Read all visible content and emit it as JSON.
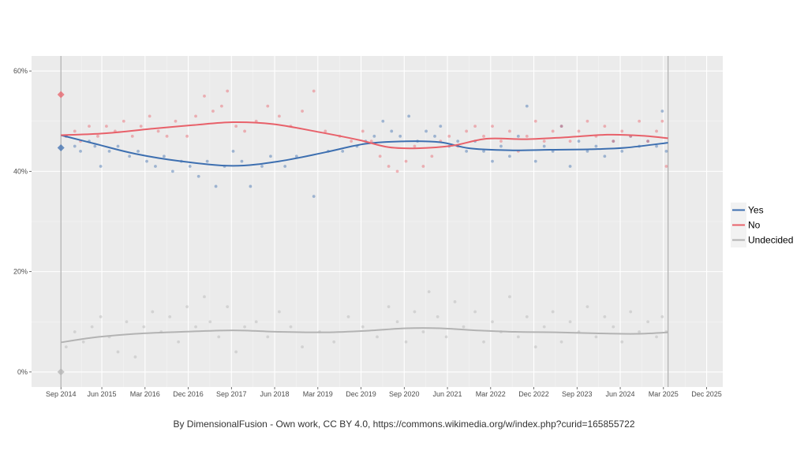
{
  "caption": "By DimensionalFusion - Own work, CC BY 4.0, https://commons.wikimedia.org/w/index.php?curid=165855722",
  "chart_data": {
    "type": "scatter",
    "title": "",
    "xlabel": "",
    "ylabel": "",
    "x_range": [
      2014.2,
      2026.2
    ],
    "ylim": [
      -3,
      63
    ],
    "x_ticks": [
      {
        "label": "Sep 2014",
        "value": 2014.71
      },
      {
        "label": "Jun 2015",
        "value": 2015.42
      },
      {
        "label": "Mar 2016",
        "value": 2016.17
      },
      {
        "label": "Dec 2016",
        "value": 2016.92
      },
      {
        "label": "Sep 2017",
        "value": 2017.67
      },
      {
        "label": "Jun 2018",
        "value": 2018.42
      },
      {
        "label": "Mar 2019",
        "value": 2019.17
      },
      {
        "label": "Dec 2019",
        "value": 2019.92
      },
      {
        "label": "Sep 2020",
        "value": 2020.67
      },
      {
        "label": "Jun 2021",
        "value": 2021.42
      },
      {
        "label": "Mar 2022",
        "value": 2022.17
      },
      {
        "label": "Dec 2022",
        "value": 2022.92
      },
      {
        "label": "Sep 2023",
        "value": 2023.67
      },
      {
        "label": "Jun 2024",
        "value": 2024.42
      },
      {
        "label": "Mar 2025",
        "value": 2025.17
      },
      {
        "label": "Dec 2025",
        "value": 2025.92
      }
    ],
    "y_ticks": [
      {
        "label": "0%",
        "value": 0
      },
      {
        "label": "20%",
        "value": 20
      },
      {
        "label": "40%",
        "value": 40
      },
      {
        "label": "60%",
        "value": 60
      }
    ],
    "vertical_lines": [
      2014.71,
      2025.25
    ],
    "grid": true,
    "legend_position": "right",
    "referendum_result": [
      {
        "series": "No",
        "x": 2014.71,
        "y": 55.3
      },
      {
        "series": "Yes",
        "x": 2014.71,
        "y": 44.7
      },
      {
        "series": "Undecided",
        "x": 2014.71,
        "y": 0
      }
    ],
    "series": [
      {
        "name": "Yes",
        "color": "#3d6fb0",
        "trend": [
          [
            2014.71,
            47.2
          ],
          [
            2015.3,
            45.5
          ],
          [
            2016.0,
            43.5
          ],
          [
            2016.8,
            42.0
          ],
          [
            2017.7,
            41.1
          ],
          [
            2018.5,
            42.0
          ],
          [
            2019.3,
            43.8
          ],
          [
            2020.0,
            45.5
          ],
          [
            2020.7,
            46.0
          ],
          [
            2021.3,
            45.8
          ],
          [
            2021.8,
            44.6
          ],
          [
            2022.5,
            44.2
          ],
          [
            2023.2,
            44.3
          ],
          [
            2023.9,
            44.4
          ],
          [
            2024.5,
            44.7
          ],
          [
            2025.25,
            45.7
          ]
        ],
        "points": [
          [
            2014.8,
            47
          ],
          [
            2014.95,
            45
          ],
          [
            2015.05,
            44
          ],
          [
            2015.2,
            46
          ],
          [
            2015.3,
            45
          ],
          [
            2015.4,
            41
          ],
          [
            2015.55,
            44
          ],
          [
            2015.7,
            45
          ],
          [
            2015.9,
            43
          ],
          [
            2016.05,
            44
          ],
          [
            2016.2,
            42
          ],
          [
            2016.35,
            41
          ],
          [
            2016.5,
            43
          ],
          [
            2016.65,
            40
          ],
          [
            2016.8,
            42
          ],
          [
            2016.95,
            41
          ],
          [
            2017.1,
            39
          ],
          [
            2017.25,
            42
          ],
          [
            2017.4,
            37
          ],
          [
            2017.55,
            41
          ],
          [
            2017.7,
            44
          ],
          [
            2017.85,
            42
          ],
          [
            2018.0,
            37
          ],
          [
            2018.2,
            41
          ],
          [
            2018.35,
            43
          ],
          [
            2018.6,
            41
          ],
          [
            2018.8,
            43
          ],
          [
            2019.1,
            35
          ],
          [
            2019.35,
            44
          ],
          [
            2019.6,
            44
          ],
          [
            2019.85,
            45
          ],
          [
            2020.0,
            46
          ],
          [
            2020.15,
            47
          ],
          [
            2020.3,
            50
          ],
          [
            2020.45,
            48
          ],
          [
            2020.6,
            47
          ],
          [
            2020.75,
            51
          ],
          [
            2020.9,
            46
          ],
          [
            2021.05,
            48
          ],
          [
            2021.2,
            47
          ],
          [
            2021.3,
            49
          ],
          [
            2021.45,
            45
          ],
          [
            2021.6,
            46
          ],
          [
            2021.75,
            44
          ],
          [
            2021.9,
            46
          ],
          [
            2022.05,
            44
          ],
          [
            2022.2,
            42
          ],
          [
            2022.35,
            45
          ],
          [
            2022.5,
            43
          ],
          [
            2022.65,
            47
          ],
          [
            2022.8,
            53
          ],
          [
            2022.95,
            42
          ],
          [
            2023.1,
            45
          ],
          [
            2023.25,
            44
          ],
          [
            2023.4,
            49
          ],
          [
            2023.55,
            41
          ],
          [
            2023.7,
            46
          ],
          [
            2023.85,
            44
          ],
          [
            2024.0,
            45
          ],
          [
            2024.15,
            43
          ],
          [
            2024.3,
            46
          ],
          [
            2024.45,
            44
          ],
          [
            2024.6,
            47
          ],
          [
            2024.75,
            45
          ],
          [
            2024.9,
            46
          ],
          [
            2025.05,
            45
          ],
          [
            2025.15,
            52
          ],
          [
            2025.22,
            44
          ]
        ]
      },
      {
        "name": "No",
        "color": "#e8616a",
        "trend": [
          [
            2014.71,
            47.2
          ],
          [
            2015.5,
            47.6
          ],
          [
            2016.3,
            48.5
          ],
          [
            2017.0,
            49.2
          ],
          [
            2017.7,
            49.8
          ],
          [
            2018.4,
            49.4
          ],
          [
            2019.2,
            47.8
          ],
          [
            2019.9,
            46.2
          ],
          [
            2020.4,
            44.8
          ],
          [
            2020.9,
            44.6
          ],
          [
            2021.5,
            45.1
          ],
          [
            2022.1,
            46.5
          ],
          [
            2022.8,
            46.4
          ],
          [
            2023.5,
            46.8
          ],
          [
            2024.2,
            47.3
          ],
          [
            2024.8,
            47.1
          ],
          [
            2025.25,
            46.6
          ]
        ],
        "points": [
          [
            2014.8,
            47
          ],
          [
            2014.95,
            48
          ],
          [
            2015.05,
            46
          ],
          [
            2015.2,
            49
          ],
          [
            2015.35,
            47
          ],
          [
            2015.5,
            49
          ],
          [
            2015.65,
            48
          ],
          [
            2015.8,
            50
          ],
          [
            2015.95,
            47
          ],
          [
            2016.1,
            49
          ],
          [
            2016.25,
            51
          ],
          [
            2016.4,
            48
          ],
          [
            2016.55,
            47
          ],
          [
            2016.7,
            50
          ],
          [
            2016.9,
            47
          ],
          [
            2017.05,
            51
          ],
          [
            2017.2,
            55
          ],
          [
            2017.35,
            52
          ],
          [
            2017.5,
            53
          ],
          [
            2017.6,
            56
          ],
          [
            2017.75,
            49
          ],
          [
            2017.9,
            48
          ],
          [
            2018.1,
            50
          ],
          [
            2018.3,
            53
          ],
          [
            2018.5,
            51
          ],
          [
            2018.7,
            49
          ],
          [
            2018.9,
            52
          ],
          [
            2019.1,
            56
          ],
          [
            2019.3,
            48
          ],
          [
            2019.55,
            47
          ],
          [
            2019.75,
            46
          ],
          [
            2019.95,
            48
          ],
          [
            2020.1,
            46
          ],
          [
            2020.25,
            43
          ],
          [
            2020.4,
            41
          ],
          [
            2020.55,
            40
          ],
          [
            2020.7,
            42
          ],
          [
            2020.85,
            45
          ],
          [
            2021.0,
            41
          ],
          [
            2021.15,
            43
          ],
          [
            2021.3,
            46
          ],
          [
            2021.45,
            47
          ],
          [
            2021.6,
            45
          ],
          [
            2021.75,
            48
          ],
          [
            2021.9,
            49
          ],
          [
            2022.05,
            47
          ],
          [
            2022.2,
            49
          ],
          [
            2022.35,
            46
          ],
          [
            2022.5,
            48
          ],
          [
            2022.65,
            44
          ],
          [
            2022.8,
            47
          ],
          [
            2022.95,
            50
          ],
          [
            2023.1,
            46
          ],
          [
            2023.25,
            48
          ],
          [
            2023.4,
            49
          ],
          [
            2023.55,
            46
          ],
          [
            2023.7,
            48
          ],
          [
            2023.85,
            50
          ],
          [
            2024.0,
            47
          ],
          [
            2024.15,
            49
          ],
          [
            2024.3,
            46
          ],
          [
            2024.45,
            48
          ],
          [
            2024.6,
            47
          ],
          [
            2024.75,
            50
          ],
          [
            2024.9,
            46
          ],
          [
            2025.05,
            48
          ],
          [
            2025.15,
            50
          ],
          [
            2025.22,
            41
          ]
        ]
      },
      {
        "name": "Undecided",
        "color": "#b3b3b3",
        "trend": [
          [
            2014.71,
            5.9
          ],
          [
            2015.3,
            6.9
          ],
          [
            2016.0,
            7.6
          ],
          [
            2016.8,
            8.0
          ],
          [
            2017.7,
            8.3
          ],
          [
            2018.5,
            8.0
          ],
          [
            2019.3,
            7.9
          ],
          [
            2020.0,
            8.2
          ],
          [
            2020.7,
            8.7
          ],
          [
            2021.3,
            8.7
          ],
          [
            2021.9,
            8.3
          ],
          [
            2022.6,
            8.0
          ],
          [
            2023.3,
            7.9
          ],
          [
            2024.0,
            7.7
          ],
          [
            2024.7,
            7.6
          ],
          [
            2025.25,
            7.9
          ]
        ],
        "points": [
          [
            2014.8,
            5
          ],
          [
            2014.95,
            8
          ],
          [
            2015.1,
            6
          ],
          [
            2015.25,
            9
          ],
          [
            2015.4,
            11
          ],
          [
            2015.55,
            7
          ],
          [
            2015.7,
            4
          ],
          [
            2015.85,
            10
          ],
          [
            2016.0,
            3
          ],
          [
            2016.15,
            9
          ],
          [
            2016.3,
            12
          ],
          [
            2016.45,
            8
          ],
          [
            2016.6,
            11
          ],
          [
            2016.75,
            6
          ],
          [
            2016.9,
            13
          ],
          [
            2017.05,
            9
          ],
          [
            2017.2,
            15
          ],
          [
            2017.3,
            10
          ],
          [
            2017.45,
            7
          ],
          [
            2017.6,
            13
          ],
          [
            2017.75,
            4
          ],
          [
            2017.9,
            9
          ],
          [
            2018.1,
            10
          ],
          [
            2018.3,
            7
          ],
          [
            2018.5,
            12
          ],
          [
            2018.7,
            9
          ],
          [
            2018.9,
            5
          ],
          [
            2019.2,
            8
          ],
          [
            2019.45,
            6
          ],
          [
            2019.7,
            11
          ],
          [
            2019.95,
            9
          ],
          [
            2020.2,
            7
          ],
          [
            2020.4,
            13
          ],
          [
            2020.55,
            10
          ],
          [
            2020.7,
            6
          ],
          [
            2020.85,
            12
          ],
          [
            2021.0,
            8
          ],
          [
            2021.1,
            16
          ],
          [
            2021.25,
            11
          ],
          [
            2021.4,
            7
          ],
          [
            2021.55,
            14
          ],
          [
            2021.7,
            9
          ],
          [
            2021.9,
            12
          ],
          [
            2022.05,
            6
          ],
          [
            2022.2,
            10
          ],
          [
            2022.35,
            8
          ],
          [
            2022.5,
            15
          ],
          [
            2022.65,
            7
          ],
          [
            2022.8,
            11
          ],
          [
            2022.95,
            5
          ],
          [
            2023.1,
            9
          ],
          [
            2023.25,
            12
          ],
          [
            2023.4,
            6
          ],
          [
            2023.55,
            10
          ],
          [
            2023.7,
            8
          ],
          [
            2023.85,
            13
          ],
          [
            2024.0,
            7
          ],
          [
            2024.15,
            11
          ],
          [
            2024.3,
            9
          ],
          [
            2024.45,
            6
          ],
          [
            2024.6,
            12
          ],
          [
            2024.75,
            8
          ],
          [
            2024.9,
            10
          ],
          [
            2025.05,
            7
          ],
          [
            2025.15,
            11
          ],
          [
            2025.22,
            8
          ]
        ]
      }
    ]
  }
}
